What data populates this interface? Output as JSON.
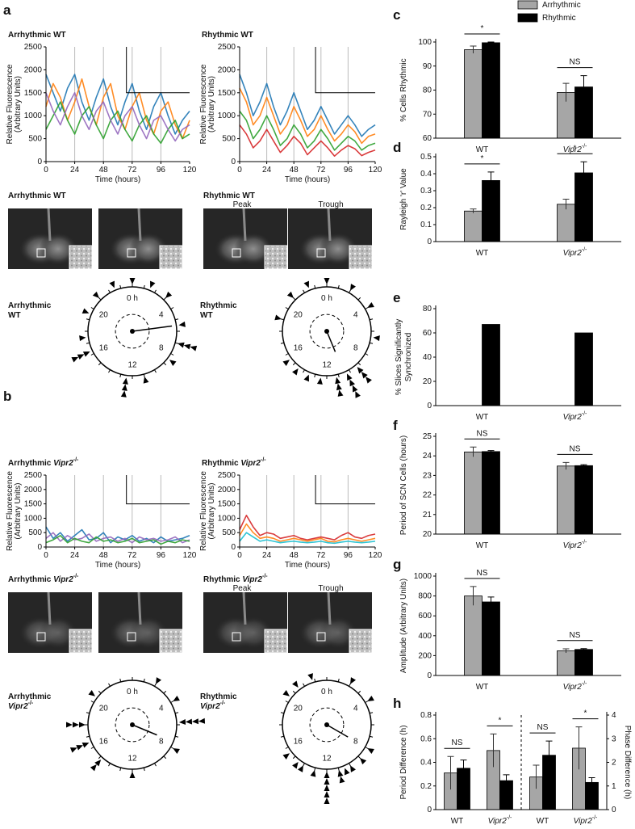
{
  "panel_labels": [
    "a",
    "b",
    "c",
    "d",
    "e",
    "f",
    "g",
    "h"
  ],
  "images": [
    {
      "title": "Arrhythmic WT"
    },
    {
      "title": "Rhythmic WT",
      "frames": [
        "Peak",
        "Trough"
      ]
    },
    {
      "title": "Arrhythmic Vipr2-/-"
    },
    {
      "title": "Rhythmic Vipr2-/-",
      "frames": [
        "Peak",
        "Trough"
      ]
    }
  ],
  "chart_data": [
    {
      "type": "line",
      "title": "Arrhythmic WT",
      "ylabel": [
        "Relative Fluorescence",
        "(Arbitrary Units)"
      ],
      "xlabel": "Time (hours)",
      "x": [
        0,
        6,
        12,
        18,
        24,
        30,
        36,
        42,
        48,
        54,
        60,
        66,
        72,
        78,
        84,
        90,
        96,
        102,
        108,
        114,
        120
      ],
      "xlim": [
        0,
        120
      ],
      "ylim": [
        0,
        2500
      ],
      "xticks": [
        0,
        24,
        48,
        72,
        96,
        120
      ],
      "yticks": [
        0,
        500,
        1000,
        1500,
        2000,
        2500
      ],
      "series": [
        {
          "color": "#1f77b4",
          "values": [
            1900,
            1500,
            1100,
            1600,
            1900,
            1300,
            900,
            1400,
            1800,
            1200,
            800,
            1300,
            1700,
            1100,
            700,
            1200,
            1500,
            1000,
            600,
            900,
            1100
          ]
        },
        {
          "color": "#ff7f0e",
          "values": [
            1200,
            1700,
            1400,
            900,
            1300,
            1800,
            1200,
            800,
            1400,
            1700,
            1000,
            700,
            1200,
            1500,
            900,
            600,
            1100,
            1300,
            800,
            500,
            900
          ]
        },
        {
          "color": "#2ca02c",
          "values": [
            700,
            1000,
            1300,
            900,
            600,
            1000,
            1200,
            800,
            500,
            900,
            1100,
            700,
            450,
            800,
            1000,
            600,
            400,
            700,
            900,
            500,
            600
          ]
        },
        {
          "color": "#9467bd",
          "values": [
            1500,
            1100,
            800,
            1200,
            1500,
            1000,
            700,
            1100,
            1300,
            900,
            600,
            1000,
            1200,
            800,
            500,
            900,
            1000,
            700,
            450,
            700,
            800
          ]
        }
      ]
    },
    {
      "type": "line",
      "title": "Rhythmic WT",
      "ylabel": [
        "Relative Fluorescence",
        "(Arbitrary Units)"
      ],
      "xlabel": "Time (hours)",
      "x": [
        0,
        6,
        12,
        18,
        24,
        30,
        36,
        42,
        48,
        54,
        60,
        66,
        72,
        78,
        84,
        90,
        96,
        102,
        108,
        114,
        120
      ],
      "xlim": [
        0,
        120
      ],
      "ylim": [
        0,
        2500
      ],
      "xticks": [
        0,
        24,
        48,
        72,
        96,
        120
      ],
      "yticks": [
        0,
        500,
        1000,
        1500,
        2000,
        2500
      ],
      "series": [
        {
          "color": "#1f77b4",
          "values": [
            1900,
            1500,
            1000,
            1300,
            1700,
            1200,
            800,
            1100,
            1500,
            1100,
            700,
            900,
            1200,
            900,
            600,
            800,
            1000,
            800,
            550,
            700,
            800
          ]
        },
        {
          "color": "#ff7f0e",
          "values": [
            1600,
            1300,
            800,
            1000,
            1400,
            1000,
            600,
            800,
            1200,
            900,
            550,
            700,
            1000,
            700,
            450,
            600,
            800,
            650,
            400,
            550,
            600
          ]
        },
        {
          "color": "#2ca02c",
          "values": [
            1100,
            900,
            500,
            700,
            1000,
            700,
            350,
            500,
            800,
            600,
            300,
            450,
            700,
            500,
            250,
            400,
            550,
            450,
            250,
            350,
            400
          ]
        },
        {
          "color": "#d62728",
          "values": [
            800,
            600,
            300,
            450,
            700,
            450,
            200,
            350,
            550,
            400,
            150,
            300,
            450,
            300,
            120,
            250,
            350,
            280,
            130,
            200,
            250
          ]
        }
      ]
    },
    {
      "type": "line",
      "title": "Arrhythmic Vipr2-/-",
      "ylabel": [
        "Relative Fluorescence",
        "(Arbitrary Units)"
      ],
      "xlabel": "Time (hours)",
      "x": [
        0,
        6,
        12,
        18,
        24,
        30,
        36,
        42,
        48,
        54,
        60,
        66,
        72,
        78,
        84,
        90,
        96,
        102,
        108,
        114,
        120
      ],
      "xlim": [
        0,
        120
      ],
      "ylim": [
        0,
        2500
      ],
      "xticks": [
        0,
        24,
        48,
        72,
        96,
        120
      ],
      "yticks": [
        0,
        500,
        1000,
        1500,
        2000,
        2500
      ],
      "series": [
        {
          "color": "#1f77b4",
          "values": [
            700,
            300,
            500,
            200,
            400,
            600,
            250,
            300,
            500,
            150,
            350,
            250,
            400,
            200,
            300,
            150,
            350,
            200,
            250,
            300,
            400
          ]
        },
        {
          "color": "#9467bd",
          "values": [
            300,
            500,
            200,
            400,
            250,
            300,
            450,
            200,
            300,
            350,
            200,
            300,
            150,
            350,
            250,
            300,
            200,
            250,
            350,
            150,
            250
          ]
        },
        {
          "color": "#2ca02c",
          "values": [
            150,
            250,
            400,
            150,
            300,
            200,
            150,
            350,
            200,
            250,
            150,
            200,
            300,
            150,
            200,
            250,
            100,
            200,
            150,
            250,
            200
          ]
        }
      ]
    },
    {
      "type": "line",
      "title": "Rhythmic Vipr2-/-",
      "ylabel": [
        "Relative Fluorescence",
        "(Arbitrary Units)"
      ],
      "xlabel": "Time (hours)",
      "x": [
        0,
        6,
        12,
        18,
        24,
        30,
        36,
        42,
        48,
        54,
        60,
        66,
        72,
        78,
        84,
        90,
        96,
        102,
        108,
        114,
        120
      ],
      "xlim": [
        0,
        120
      ],
      "ylim": [
        0,
        2500
      ],
      "xticks": [
        0,
        24,
        48,
        72,
        96,
        120
      ],
      "yticks": [
        0,
        500,
        1000,
        1500,
        2000,
        2500
      ],
      "series": [
        {
          "color": "#d62728",
          "values": [
            600,
            1100,
            700,
            400,
            500,
            450,
            300,
            350,
            400,
            300,
            250,
            300,
            350,
            300,
            250,
            400,
            500,
            350,
            300,
            400,
            450
          ]
        },
        {
          "color": "#ff7f0e",
          "values": [
            400,
            800,
            500,
            300,
            350,
            300,
            200,
            250,
            300,
            250,
            200,
            250,
            300,
            200,
            180,
            250,
            300,
            250,
            200,
            250,
            300
          ]
        },
        {
          "color": "#17becf",
          "values": [
            200,
            500,
            350,
            200,
            250,
            200,
            150,
            180,
            200,
            170,
            150,
            170,
            200,
            150,
            130,
            170,
            200,
            170,
            150,
            170,
            200
          ]
        }
      ]
    },
    {
      "type": "clock",
      "title": [
        "Arrhythmic",
        "WT"
      ],
      "hour_labels": [
        {
          "value": 0,
          "label": "0 h"
        },
        4,
        8,
        12,
        16,
        20
      ],
      "phases": [
        0,
        1.5,
        3,
        5.5,
        7,
        7,
        7,
        8.5,
        11,
        12.5,
        12.5,
        12.5,
        16.3,
        16.3,
        16.3,
        17.5,
        19.5,
        21,
        22.5
      ],
      "mean_phase": 5.5,
      "vector_length": 0.9
    },
    {
      "type": "clock",
      "title": [
        "Rhythmic",
        "WT"
      ],
      "hour_labels": [
        {
          "value": 0,
          "label": "0 h"
        },
        4,
        8,
        12,
        16,
        20
      ],
      "phases": [
        0,
        2,
        4,
        6.5,
        15.5,
        19,
        21,
        22.5,
        12.5,
        13.5,
        14.5,
        11.2,
        11.2,
        11.2,
        10.3,
        10.3,
        10.3,
        10.3,
        9.3,
        9.3,
        9.3
      ],
      "mean_phase": 10.5,
      "vector_length": 0.5
    },
    {
      "type": "clock",
      "title": [
        "Arrhythmic",
        "Vipr2-/-"
      ],
      "hour_labels": [
        {
          "value": 0,
          "label": "0 h"
        },
        4,
        8,
        12,
        16,
        20
      ],
      "phases": [
        2,
        4,
        5.8,
        5.8,
        5.8,
        5.8,
        8,
        12,
        14.8,
        14.8,
        16.5,
        16.5,
        16.5,
        18,
        18,
        18,
        20.5
      ],
      "mean_phase": 7.5,
      "vector_length": 0.6
    },
    {
      "type": "clock",
      "title": [
        "Rhythmic",
        "Vipr2-/-"
      ],
      "hour_labels": [
        {
          "value": 0,
          "label": "0 h"
        },
        4,
        8,
        12,
        16,
        20
      ],
      "phases": [
        2,
        4,
        20.5,
        21.5,
        22.8,
        8,
        9,
        10,
        10.5,
        12,
        12,
        12,
        12,
        12,
        13,
        14,
        14.5,
        15.5,
        11,
        11
      ],
      "mean_phase": 8,
      "vector_length": 0.55
    },
    {
      "type": "bar",
      "ylabel": [
        "% Cells Rhythmic"
      ],
      "categories": [
        "WT",
        "Vipr2-/-"
      ],
      "ylim": [
        60,
        100
      ],
      "yticks": [
        60,
        70,
        80,
        90,
        100
      ],
      "series": [
        {
          "name": "Arrhythmic",
          "color": "#a6a6a6",
          "values": [
            96.8,
            79
          ],
          "errors": [
            1.5,
            3.8
          ]
        },
        {
          "name": "Rhythmic",
          "color": "#000000",
          "values": [
            99.7,
            81.3
          ],
          "errors": [
            0.3,
            4.7
          ]
        }
      ],
      "annotations": [
        {
          "text": "*",
          "category": 0
        },
        {
          "text": "NS",
          "category": 1
        }
      ]
    },
    {
      "type": "bar",
      "ylabel": [
        "Rayleigh 'r' Value"
      ],
      "categories": [
        "WT",
        "Vipr2-/-"
      ],
      "ylim": [
        0,
        0.5
      ],
      "yticks": [
        0,
        0.1,
        0.2,
        0.3,
        0.4,
        0.5
      ],
      "series": [
        {
          "color": "#a6a6a6",
          "values": [
            0.18,
            0.22
          ],
          "errors": [
            0.012,
            0.03
          ]
        },
        {
          "color": "#000000",
          "values": [
            0.36,
            0.405
          ],
          "errors": [
            0.05,
            0.065
          ]
        }
      ],
      "annotations": [
        {
          "text": "*",
          "category": 0
        },
        {
          "text": "*",
          "category": 1
        }
      ]
    },
    {
      "type": "bar",
      "ylabel": [
        "% Slices Significantly",
        "Synchronized"
      ],
      "categories": [
        "WT",
        "Vipr2-/-"
      ],
      "ylim": [
        0,
        80
      ],
      "yticks": [
        0,
        20,
        40,
        60,
        80
      ],
      "series": [
        {
          "color": "#a6a6a6",
          "values": [
            null,
            null
          ]
        },
        {
          "color": "#000000",
          "values": [
            67,
            60
          ]
        }
      ]
    },
    {
      "type": "bar",
      "ylabel": [
        "Period of SCN Cells (hours)"
      ],
      "categories": [
        "WT",
        "Vipr2-/-"
      ],
      "ylim": [
        20,
        25
      ],
      "yticks": [
        20,
        21,
        22,
        23,
        24,
        25
      ],
      "series": [
        {
          "color": "#a6a6a6",
          "values": [
            24.2,
            23.48
          ],
          "errors": [
            0.25,
            0.18
          ]
        },
        {
          "color": "#000000",
          "values": [
            24.22,
            23.5
          ],
          "errors": [
            0.05,
            0.05
          ]
        }
      ],
      "annotations": [
        {
          "text": "NS",
          "category": 0
        },
        {
          "text": "NS",
          "category": 1
        }
      ]
    },
    {
      "type": "bar",
      "ylabel": [
        "Amplitude (Arbitrary Units)"
      ],
      "categories": [
        "WT",
        "Vipr2-/-"
      ],
      "ylim": [
        0,
        1000
      ],
      "yticks": [
        0,
        200,
        400,
        600,
        800,
        1000
      ],
      "series": [
        {
          "color": "#a6a6a6",
          "values": [
            800,
            248
          ],
          "errors": [
            95,
            20
          ]
        },
        {
          "color": "#000000",
          "values": [
            740,
            262
          ],
          "errors": [
            50,
            8
          ]
        }
      ],
      "annotations": [
        {
          "text": "NS",
          "category": 0
        },
        {
          "text": "NS",
          "category": 1
        }
      ]
    },
    {
      "type": "bar",
      "ylabel": [
        "Period Difference (h)"
      ],
      "y2label": "Phase Difference (h)",
      "categories": [
        "WT",
        "Vipr2-/-",
        "WT",
        "Vipr2-/-"
      ],
      "ylim": [
        0,
        0.8
      ],
      "yticks": [
        0,
        0.2,
        0.4,
        0.6,
        0.8
      ],
      "y2lim": [
        0,
        4
      ],
      "y2ticks": [
        0,
        1,
        2,
        3,
        4
      ],
      "series": [
        {
          "color": "#a6a6a6",
          "values": [
            0.31,
            0.5,
            null,
            null
          ],
          "errors": [
            0.14,
            0.14,
            null,
            null
          ]
        },
        {
          "color": "#000000",
          "values": [
            0.35,
            0.245,
            null,
            null
          ],
          "errors": [
            0.07,
            0.05,
            null,
            null
          ]
        },
        {
          "color": "#a6a6a6",
          "axis": "y2",
          "values": [
            null,
            null,
            1.38,
            2.6
          ],
          "errors": [
            null,
            null,
            0.5,
            0.9
          ]
        },
        {
          "color": "#000000",
          "axis": "y2",
          "values": [
            null,
            null,
            2.3,
            1.15
          ],
          "errors": [
            null,
            null,
            0.6,
            0.2
          ]
        }
      ],
      "annotations": [
        {
          "text": "NS",
          "category": 0
        },
        {
          "text": "*",
          "category": 1
        },
        {
          "text": "NS",
          "category": 2
        },
        {
          "text": "*",
          "category": 3
        }
      ]
    }
  ]
}
